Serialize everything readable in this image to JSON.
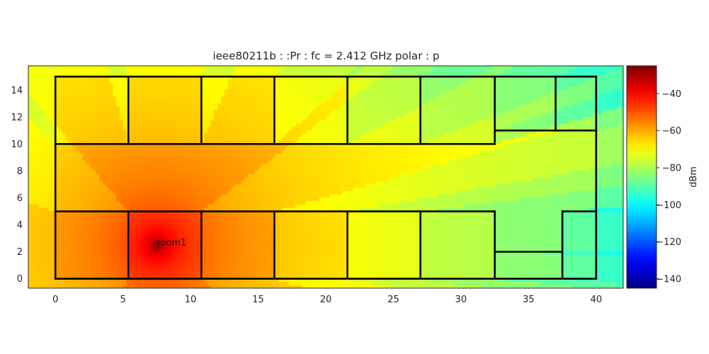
{
  "chart_data": {
    "type": "heatmap",
    "title": "ieee80211b :  :Pr :  fc = 2.412 GHz polar : p",
    "xlabel": "",
    "ylabel": "",
    "xlim": [
      -2,
      42
    ],
    "ylim": [
      -0.7,
      15.8
    ],
    "x_ticks": [
      0,
      5,
      10,
      15,
      20,
      25,
      30,
      35,
      40
    ],
    "y_ticks": [
      0,
      2,
      4,
      6,
      8,
      10,
      12,
      14
    ],
    "colormap": "jet",
    "colorbar": {
      "label": "dBm",
      "range": [
        -145,
        -25
      ],
      "ticks": [
        -40,
        -60,
        -80,
        -100,
        -120,
        -140
      ]
    },
    "access_point": {
      "label": "room1",
      "x": 7.5,
      "y": 2.5,
      "power_dbm": -28
    },
    "walls": [
      [
        [
          0,
          0
        ],
        [
          40,
          0
        ]
      ],
      [
        [
          40,
          0
        ],
        [
          40,
          15
        ]
      ],
      [
        [
          40,
          15
        ],
        [
          0,
          15
        ]
      ],
      [
        [
          0,
          15
        ],
        [
          0,
          0
        ]
      ],
      [
        [
          0,
          10
        ],
        [
          32.5,
          10
        ]
      ],
      [
        [
          0,
          5
        ],
        [
          32.5,
          5
        ]
      ],
      [
        [
          5.4,
          10
        ],
        [
          5.4,
          15
        ]
      ],
      [
        [
          10.8,
          10
        ],
        [
          10.8,
          15
        ]
      ],
      [
        [
          16.2,
          10
        ],
        [
          16.2,
          15
        ]
      ],
      [
        [
          21.6,
          10
        ],
        [
          21.6,
          15
        ]
      ],
      [
        [
          27,
          10
        ],
        [
          27,
          15
        ]
      ],
      [
        [
          32.5,
          10
        ],
        [
          32.5,
          15
        ]
      ],
      [
        [
          37,
          11
        ],
        [
          37,
          15
        ]
      ],
      [
        [
          32.5,
          11
        ],
        [
          40,
          11
        ]
      ],
      [
        [
          5.4,
          0
        ],
        [
          5.4,
          5
        ]
      ],
      [
        [
          10.8,
          0
        ],
        [
          10.8,
          5
        ]
      ],
      [
        [
          16.2,
          0
        ],
        [
          16.2,
          5
        ]
      ],
      [
        [
          21.6,
          0
        ],
        [
          21.6,
          5
        ]
      ],
      [
        [
          27,
          0
        ],
        [
          27,
          5
        ]
      ],
      [
        [
          32.5,
          0
        ],
        [
          32.5,
          5
        ]
      ],
      [
        [
          32.5,
          2
        ],
        [
          37.5,
          2
        ]
      ],
      [
        [
          37.5,
          0
        ],
        [
          37.5,
          5
        ]
      ],
      [
        [
          37.5,
          5
        ],
        [
          40,
          5
        ]
      ]
    ],
    "grid": false,
    "legend": "none"
  }
}
